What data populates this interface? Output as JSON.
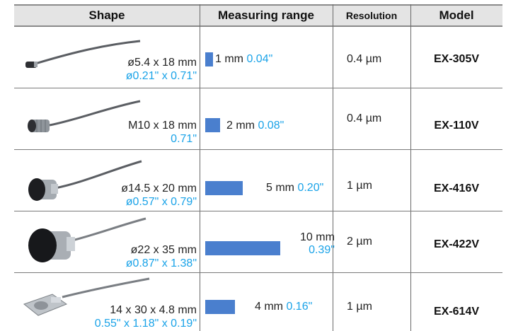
{
  "headers": {
    "shape": "Shape",
    "range": "Measuring range",
    "resolution": "Resolution",
    "model": "Model"
  },
  "rows": [
    {
      "dim": "ø5.4 x 18 mm",
      "dim_in": "ø0.21\" x 0.71\"",
      "range_mm": "1 mm",
      "range_in": "0.04\"",
      "range_value": 1,
      "resolution": "0.4 µm",
      "model": "EX-305V",
      "icon": "small-cylinder-sensor-icon"
    },
    {
      "dim": "M10 x 18 mm",
      "dim_in": "0.71\"",
      "range_mm": "2 mm",
      "range_in": "0.08\"",
      "range_value": 2,
      "resolution": "0.4 µm",
      "model": "EX-110V",
      "icon": "threaded-cylinder-sensor-icon"
    },
    {
      "dim": "ø14.5 x 20 mm",
      "dim_in": "ø0.57\" x 0.79\"",
      "range_mm": "5 mm",
      "range_in": "0.20\"",
      "range_value": 5,
      "resolution": "1 µm",
      "model": "EX-416V",
      "icon": "medium-cylinder-sensor-icon"
    },
    {
      "dim": "ø22 x 35 mm",
      "dim_in": "ø0.87\" x 1.38\"",
      "range_mm": "10 mm",
      "range_in": "0.39\"",
      "range_value": 10,
      "resolution": "2 µm",
      "model": "EX-422V",
      "icon": "large-cylinder-sensor-icon"
    },
    {
      "dim": "14 x 30 x 4.8 mm",
      "dim_in": "0.55\" x 1.18\" x 0.19\"",
      "range_mm": "4 mm",
      "range_in": "0.16\"",
      "range_value": 4,
      "resolution": "1 µm",
      "model": "EX-614V",
      "icon": "flat-plate-sensor-icon"
    }
  ],
  "colors": {
    "bar": "#4a7fce",
    "inch_text": "#1aa3e8",
    "header_bg": "#e4e4e4"
  }
}
